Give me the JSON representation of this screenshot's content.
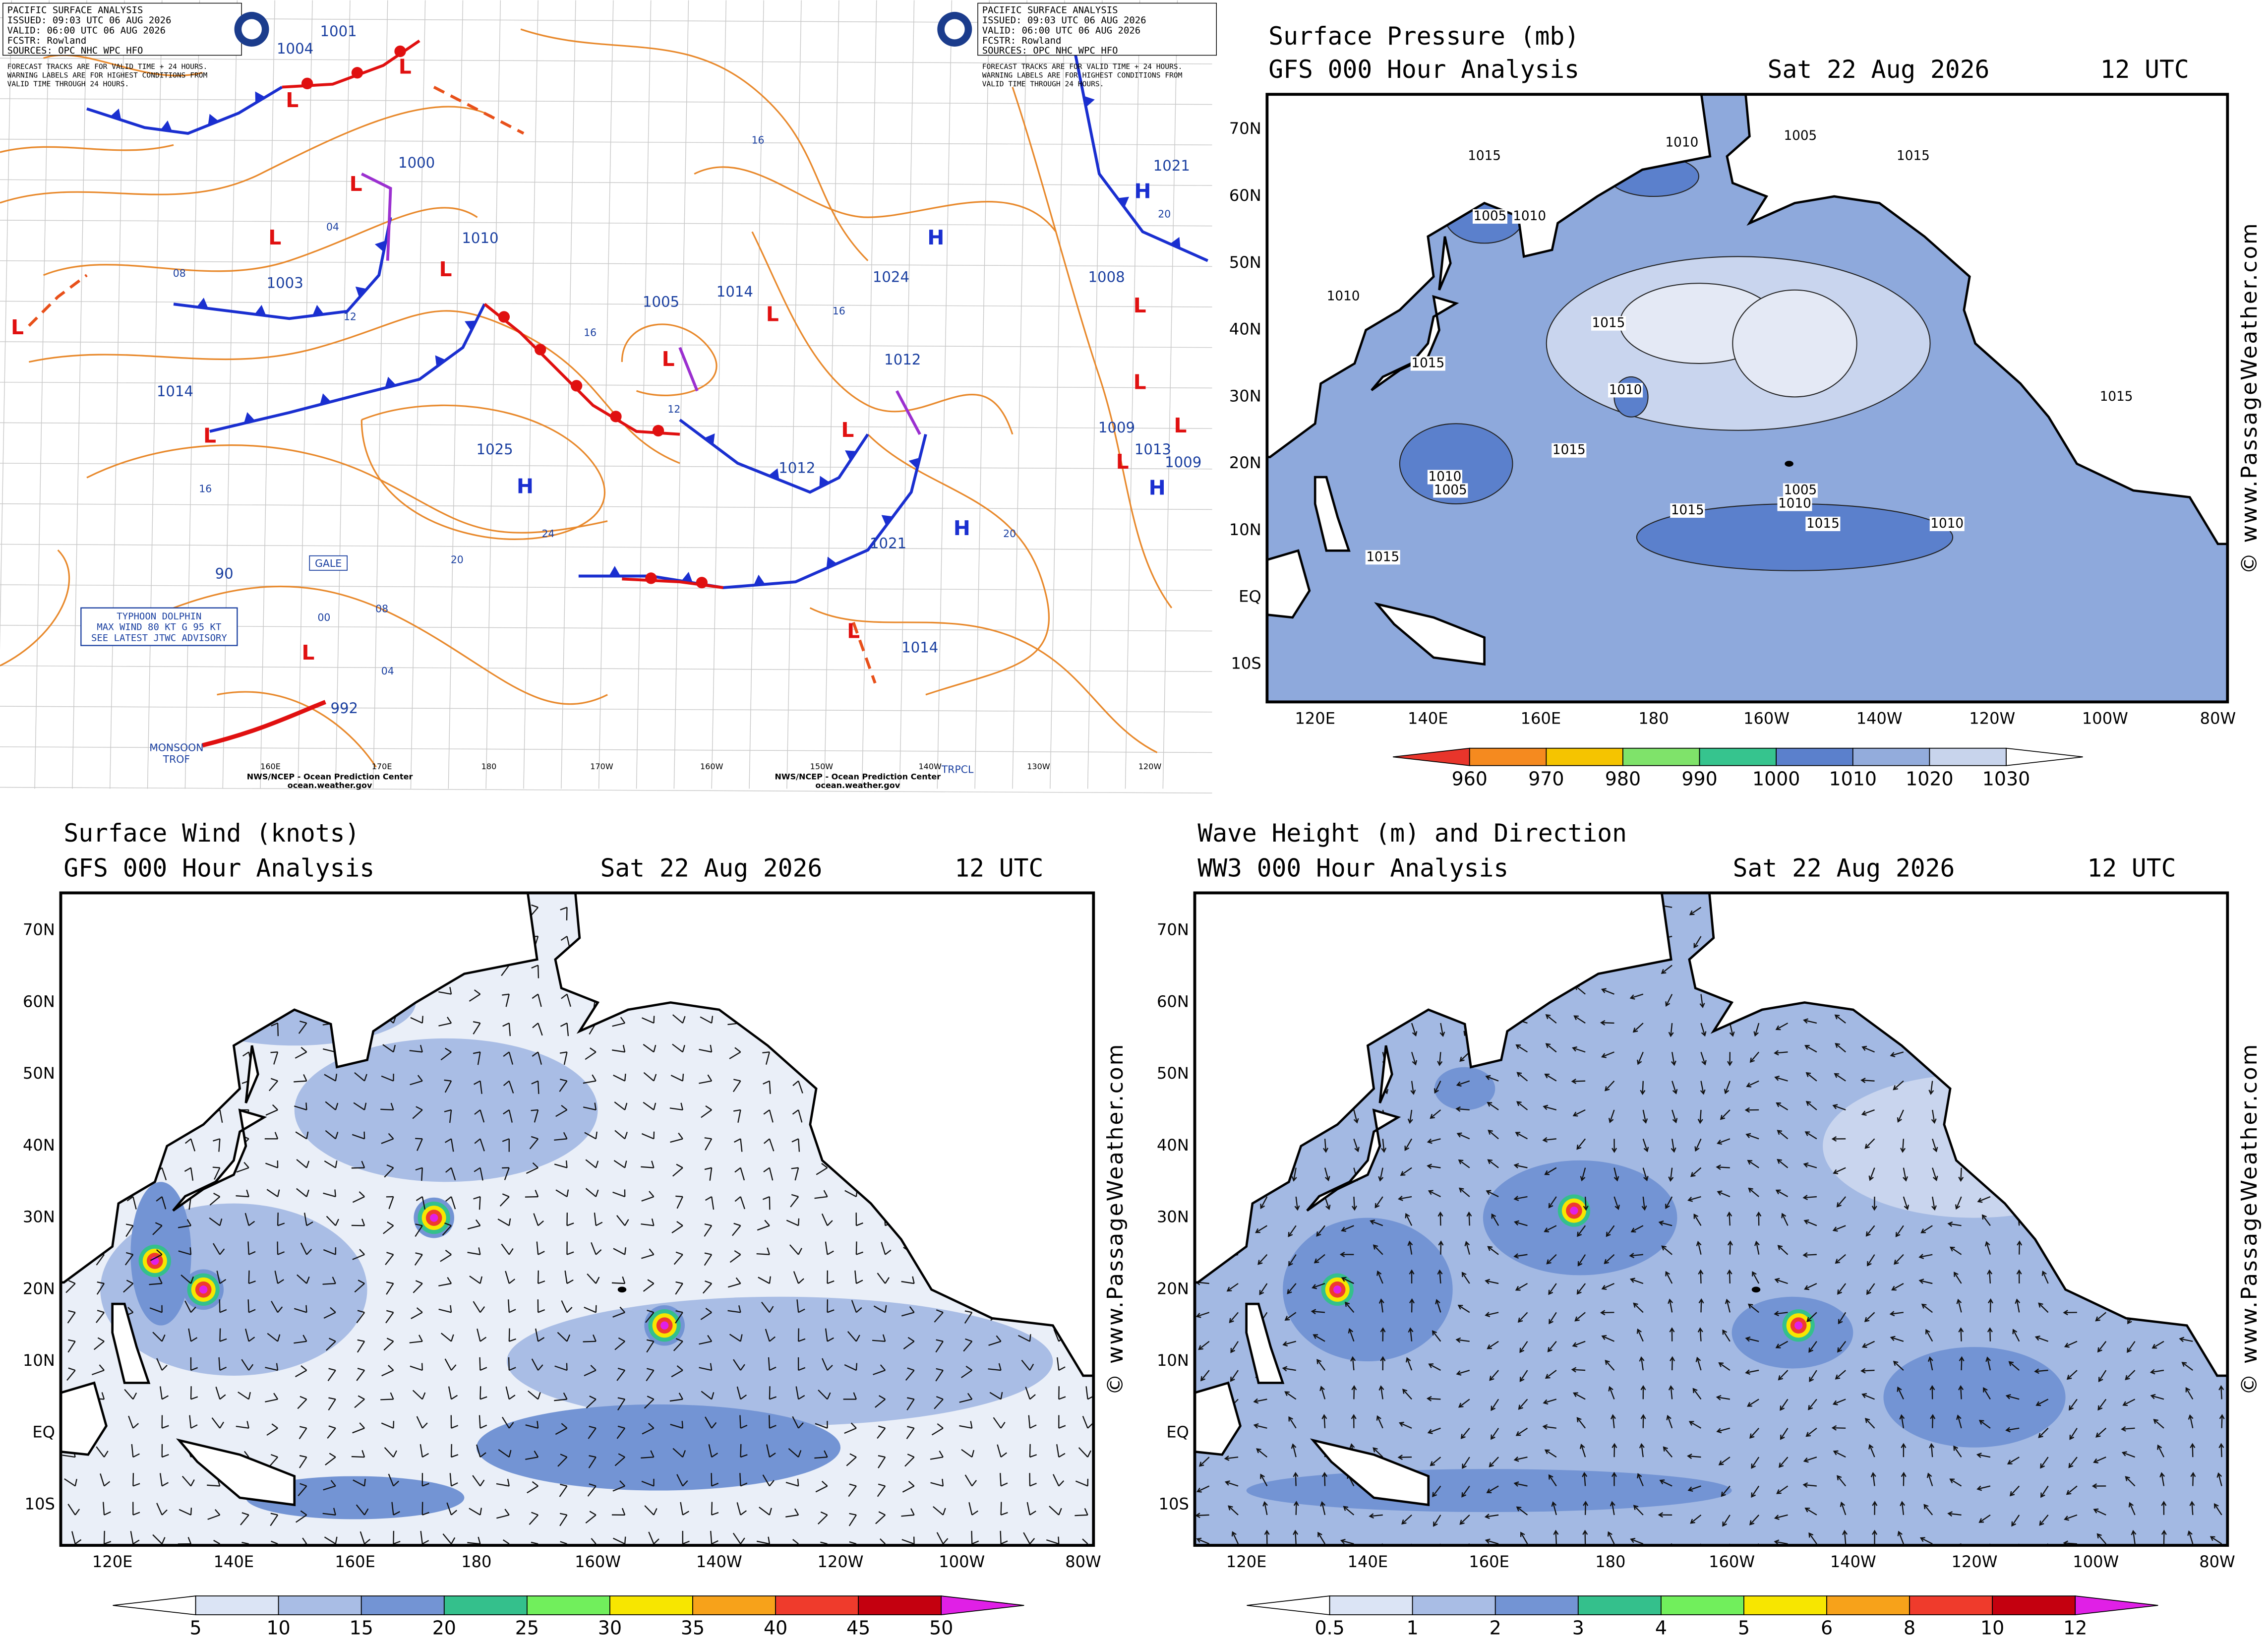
{
  "analysis": {
    "header": [
      "PACIFIC SURFACE ANALYSIS",
      "ISSUED: 09:03 UTC 06 AUG 2026",
      "VALID: 06:00 UTC 06 AUG 2026",
      "FCSTR: Rowland",
      "SOURCES: OPC NHC WPC HFO"
    ],
    "note": [
      "FORECAST TRACKS ARE FOR VALID TIME + 24 HOURS.",
      "WARNING LABELS ARE FOR HIGHEST CONDITIONS FROM",
      "VALID TIME THROUGH 24 HOURS."
    ],
    "pressure_labels": [
      "1001",
      "1004",
      "1000",
      "1010",
      "1003",
      "1014",
      "1005",
      "1014",
      "1024",
      "1012",
      "1012",
      "1025",
      "1021",
      "1014",
      "1008",
      "1021",
      "1009",
      "1013",
      "1009",
      "90",
      "992"
    ],
    "isobar_labels": [
      "12",
      "08",
      "12",
      "16",
      "20",
      "24",
      "08",
      "00",
      "04",
      "04",
      "16",
      "16",
      "20",
      "16",
      "20"
    ],
    "centers": [
      "L",
      "L",
      "L",
      "L",
      "L",
      "L",
      "L",
      "L",
      "L",
      "L",
      "L",
      "L",
      "L",
      "L",
      "L",
      "L",
      "H",
      "H",
      "H",
      "H",
      "H"
    ],
    "gale": "GALE",
    "typhoon": [
      "TYPHOON DOLPHIN",
      "MAX WIND 80 KT G 95 KT",
      "SEE LATEST JTWC ADVISORY"
    ],
    "monsoon": [
      "MONSOON",
      "TROF"
    ],
    "trpcl": "TRPCL",
    "credit": [
      "NWS/NCEP - Ocean Prediction Center",
      "ocean.weather.gov"
    ],
    "lon_labels": [
      "160E",
      "170E",
      "180",
      "170W",
      "160W",
      "150W",
      "140W",
      "130W",
      "120W"
    ]
  },
  "panels": [
    {
      "title": "Surface Pressure (mb)",
      "subtitle": "GFS 000 Hour Analysis",
      "date": "Sat 22 Aug 2026",
      "time": "12 UTC",
      "lat_labels": [
        "70N",
        "60N",
        "50N",
        "40N",
        "30N",
        "20N",
        "10N",
        "EQ",
        "10S"
      ],
      "lon_labels": [
        "120E",
        "140E",
        "160E",
        "180",
        "160W",
        "140W",
        "120W",
        "100W",
        "80W"
      ],
      "contour_labels": [
        "1015",
        "1010",
        "1005",
        "1015",
        "1010",
        "1005",
        "1015",
        "1010",
        "1015",
        "1015",
        "1010",
        "1005",
        "1015",
        "1010",
        "1015",
        "1010",
        "1005",
        "1015",
        "1010",
        "1015"
      ],
      "colorbar": {
        "ticks": [
          960,
          970,
          980,
          990,
          1000,
          1010,
          1020,
          1030
        ],
        "colors": [
          "#e8352b",
          "#f58a1f",
          "#f5c400",
          "#7fe36a",
          "#36c48e",
          "#5b80cc",
          "#93acdc",
          "#c8d4ec",
          "#ffffff"
        ]
      },
      "watermark": "© www.PassageWeather.com"
    },
    {
      "title": "Surface Wind (knots)",
      "subtitle": "GFS 000 Hour Analysis",
      "date": "Sat 22 Aug 2026",
      "time": "12 UTC",
      "lat_labels": [
        "70N",
        "60N",
        "50N",
        "40N",
        "30N",
        "20N",
        "10N",
        "EQ",
        "10S"
      ],
      "lon_labels": [
        "120E",
        "140E",
        "160E",
        "180",
        "160W",
        "140W",
        "120W",
        "100W",
        "80W"
      ],
      "colorbar": {
        "ticks": [
          5,
          10,
          15,
          20,
          25,
          30,
          35,
          40,
          45,
          50
        ],
        "colors": [
          "#ffffff",
          "#dbe4f5",
          "#a9bde5",
          "#7394d4",
          "#34c08c",
          "#71ef5c",
          "#f7e600",
          "#f7a21a",
          "#ef3b2c",
          "#c4000f",
          "#e020e6"
        ]
      },
      "watermark": "© www.PassageWeather.com"
    },
    {
      "title": "Wave Height (m) and Direction",
      "subtitle": "WW3 000 Hour Analysis",
      "date": "Sat 22 Aug 2026",
      "time": "12 UTC",
      "lat_labels": [
        "70N",
        "60N",
        "50N",
        "40N",
        "30N",
        "20N",
        "10N",
        "EQ",
        "10S"
      ],
      "lon_labels": [
        "120E",
        "140E",
        "160E",
        "180",
        "160W",
        "140W",
        "120W",
        "100W",
        "80W"
      ],
      "colorbar": {
        "ticks": [
          0.5,
          1,
          2,
          3,
          4,
          5,
          6,
          8,
          10,
          12
        ],
        "colors": [
          "#ffffff",
          "#dbe4f5",
          "#a9bde5",
          "#7394d4",
          "#34c08c",
          "#71ef5c",
          "#f7e600",
          "#f7a21a",
          "#ef3b2c",
          "#c4000f",
          "#e020e6"
        ]
      },
      "watermark": "© www.PassageWeather.com"
    }
  ]
}
